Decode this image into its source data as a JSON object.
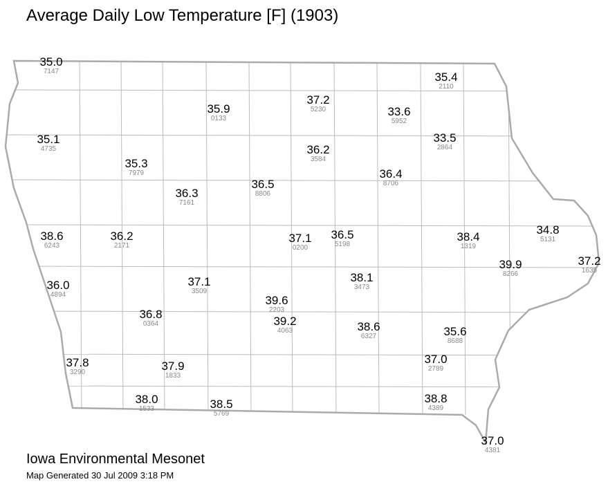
{
  "title": "Average Daily Low Temperature [F] (1903)",
  "stations": [
    {
      "value": "35.0",
      "id": "7147"
    },
    {
      "value": "35.4",
      "id": "2110"
    },
    {
      "value": "37.2",
      "id": "5230"
    },
    {
      "value": "35.9",
      "id": "0133"
    },
    {
      "value": "33.6",
      "id": "5952"
    },
    {
      "value": "35.1",
      "id": "4735"
    },
    {
      "value": "33.5",
      "id": "2864"
    },
    {
      "value": "36.2",
      "id": "3584"
    },
    {
      "value": "35.3",
      "id": "7979"
    },
    {
      "value": "36.4",
      "id": "8706"
    },
    {
      "value": "36.5",
      "id": "8806"
    },
    {
      "value": "36.3",
      "id": "7161"
    },
    {
      "value": "38.6",
      "id": "6243"
    },
    {
      "value": "36.2",
      "id": "2171"
    },
    {
      "value": "37.1",
      "id": "0200"
    },
    {
      "value": "36.5",
      "id": "5198"
    },
    {
      "value": "38.4",
      "id": "1319"
    },
    {
      "value": "34.8",
      "id": "5131"
    },
    {
      "value": "37.2",
      "id": "1635"
    },
    {
      "value": "39.9",
      "id": "8266"
    },
    {
      "value": "36.0",
      "id": "4894"
    },
    {
      "value": "37.1",
      "id": "3509"
    },
    {
      "value": "38.1",
      "id": "3473"
    },
    {
      "value": "39.6",
      "id": "2203"
    },
    {
      "value": "36.8",
      "id": "0364"
    },
    {
      "value": "39.2",
      "id": "4063"
    },
    {
      "value": "38.6",
      "id": "6327"
    },
    {
      "value": "35.6",
      "id": "8688"
    },
    {
      "value": "37.8",
      "id": "3290"
    },
    {
      "value": "37.9",
      "id": "1833"
    },
    {
      "value": "37.0",
      "id": "2789"
    },
    {
      "value": "38.0",
      "id": "1533"
    },
    {
      "value": "38.5",
      "id": "5769"
    },
    {
      "value": "38.8",
      "id": "4389"
    },
    {
      "value": "37.0",
      "id": "4381"
    }
  ],
  "footer": {
    "org": "Iowa Environmental Mesonet",
    "generated": "Map Generated 30 Jul 2009 3:18 PM"
  }
}
